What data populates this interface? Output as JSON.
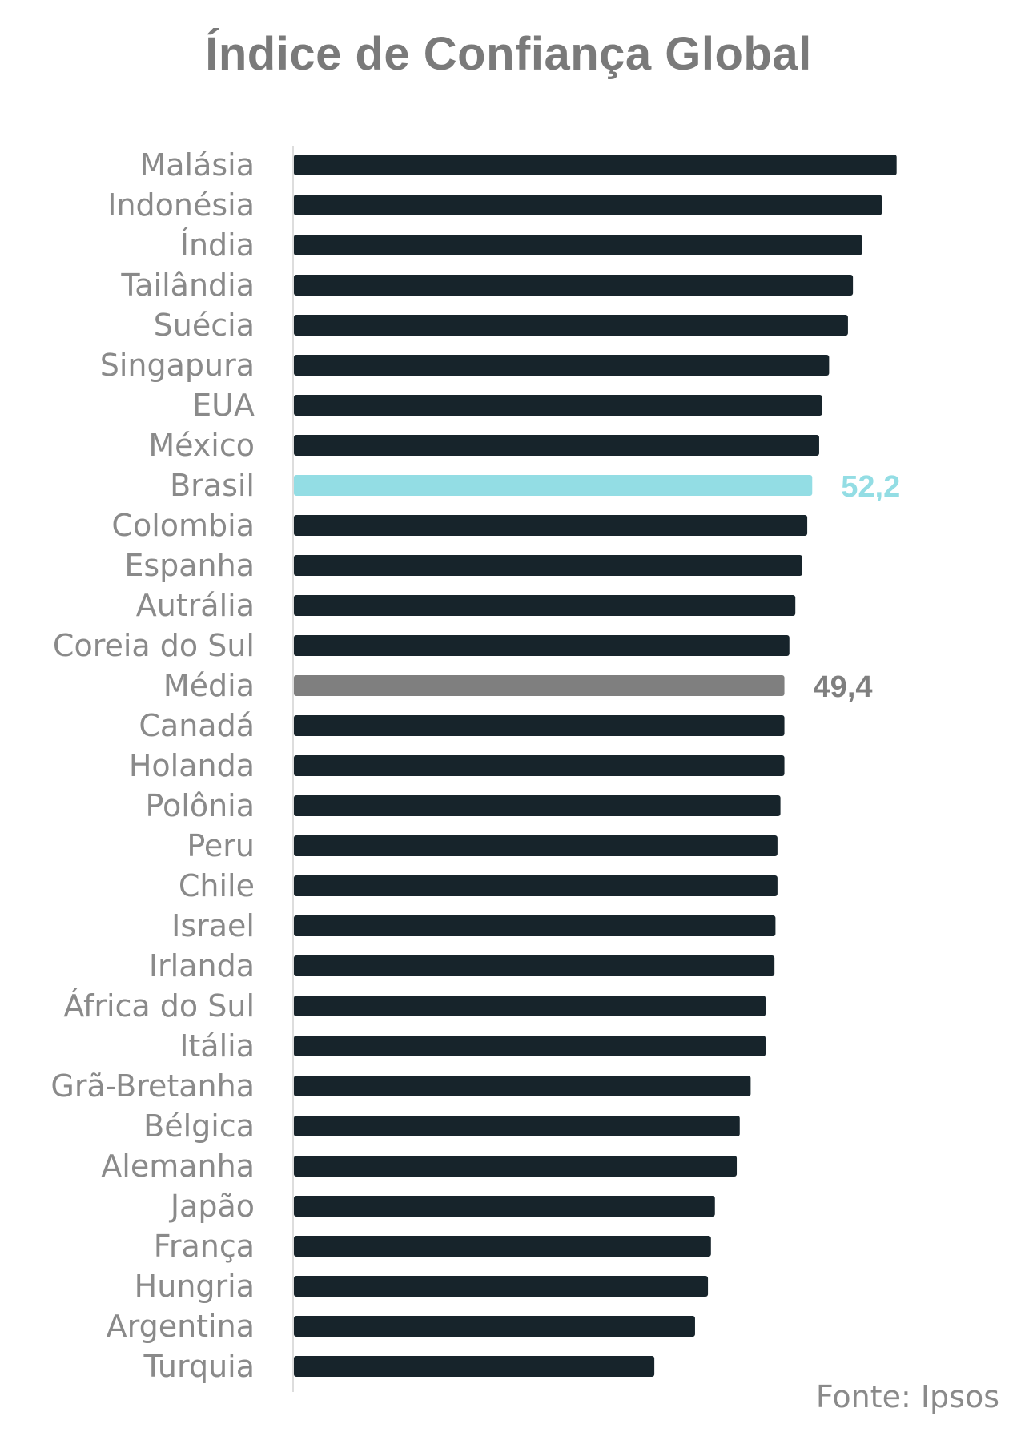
{
  "chart_data": {
    "type": "bar",
    "orientation": "horizontal",
    "title": "Índice de Confiança Global",
    "categories": [
      "Malásia",
      "Indonésia",
      "Índia",
      "Tailândia",
      "Suécia",
      "Singapura",
      "EUA",
      "México",
      "Brasil",
      "Colombia",
      "Espanha",
      "Autrália",
      "Coreia do Sul",
      "Média",
      "Canadá",
      "Holanda",
      "Polônia",
      "Peru",
      "Chile",
      "Israel",
      "Irlanda",
      "África do Sul",
      "Itália",
      "Grã-Bretanha",
      "Bélgica",
      "Alemanha",
      "Japão",
      "França",
      "Hungria",
      "Argentina",
      "Turquia"
    ],
    "values": [
      60.7,
      59.2,
      57.2,
      56.3,
      55.8,
      53.9,
      53.2,
      52.9,
      52.2,
      51.7,
      51.2,
      50.5,
      49.9,
      49.4,
      49.4,
      49.4,
      49.0,
      48.7,
      48.7,
      48.5,
      48.4,
      47.5,
      47.5,
      46.0,
      44.9,
      44.6,
      42.4,
      42.0,
      41.7,
      40.4,
      36.3
    ],
    "xlim": [
      0,
      70
    ],
    "grid": false,
    "colors": {
      "default": "#17242b",
      "Brasil": "#93dde4",
      "Média": "#7f7f7f",
      "axis": "#dddddd"
    },
    "data_labels": [
      {
        "category": "Brasil",
        "text": "52,2",
        "color": "#93dde4"
      },
      {
        "category": "Média",
        "text": "49,4",
        "color": "#7f7f7f"
      }
    ],
    "source": "Fonte: Ipsos"
  }
}
